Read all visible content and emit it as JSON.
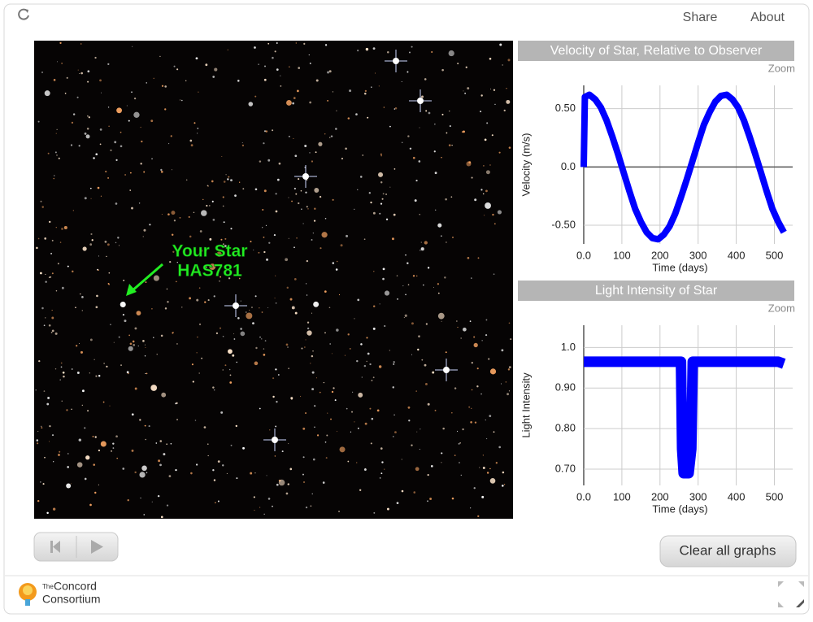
{
  "toolbar": {
    "share": "Share",
    "about": "About"
  },
  "star_label": {
    "line1": "Your Star",
    "line2": "HAS781"
  },
  "buttons": {
    "clear": "Clear all graphs"
  },
  "footer": {
    "logo_small": "The",
    "logo_name1": "Concord",
    "logo_name2": "Consortium"
  },
  "chart_data": [
    {
      "type": "line",
      "title": "Velocity of Star, Relative to Observer",
      "zoom": "Zoom",
      "x_label": "Time (days)",
      "y_label": "Velocity (m/s)",
      "color": "#0000ff",
      "x": [
        0,
        3,
        15,
        30,
        45,
        60,
        75,
        90,
        105,
        120,
        135,
        150,
        165,
        180,
        195,
        210,
        225,
        240,
        255,
        270,
        285,
        300,
        315,
        330,
        345,
        360,
        375,
        390,
        405,
        420,
        435,
        450,
        465,
        480,
        495,
        510,
        525
      ],
      "values": [
        0.0,
        0.6,
        0.62,
        0.58,
        0.51,
        0.4,
        0.26,
        0.11,
        -0.05,
        -0.21,
        -0.36,
        -0.47,
        -0.56,
        -0.61,
        -0.62,
        -0.58,
        -0.51,
        -0.4,
        -0.26,
        -0.11,
        0.05,
        0.21,
        0.36,
        0.47,
        0.56,
        0.61,
        0.62,
        0.58,
        0.51,
        0.4,
        0.26,
        0.11,
        -0.05,
        -0.21,
        -0.36,
        -0.47,
        -0.56
      ],
      "xlim": [
        0,
        548
      ],
      "xticks": [
        {
          "value": 0,
          "label": "0.0"
        },
        100,
        200,
        300,
        400,
        500
      ],
      "ylim": [
        -0.66,
        0.7
      ],
      "yticks": [
        {
          "value": 0.5,
          "label": "0.50"
        },
        {
          "value": 0,
          "label": "0.0"
        },
        {
          "value": -0.5,
          "label": "-0.50"
        }
      ],
      "grid": true
    },
    {
      "type": "line",
      "title": "Light Intensity of Star",
      "zoom": "Zoom",
      "x_label": "Time (days)",
      "y_label": "Light Intensity",
      "color": "#0000ff",
      "x": [
        0,
        30,
        60,
        90,
        120,
        150,
        180,
        210,
        240,
        255,
        258,
        262,
        275,
        282,
        286,
        300,
        330,
        360,
        390,
        420,
        450,
        480,
        510,
        525
      ],
      "values": [
        0.965,
        0.965,
        0.965,
        0.965,
        0.965,
        0.965,
        0.965,
        0.965,
        0.965,
        0.965,
        0.75,
        0.69,
        0.69,
        0.75,
        0.965,
        0.965,
        0.965,
        0.965,
        0.965,
        0.965,
        0.965,
        0.965,
        0.965,
        0.96
      ],
      "xlim": [
        0,
        548
      ],
      "xticks": [
        {
          "value": 0,
          "label": "0.0"
        },
        100,
        200,
        300,
        400,
        500
      ],
      "ylim": [
        0.66,
        1.055
      ],
      "yticks": [
        {
          "value": 1.0,
          "label": "1.0"
        },
        {
          "value": 0.9,
          "label": "0.90"
        },
        {
          "value": 0.8,
          "label": "0.80"
        },
        {
          "value": 0.7,
          "label": "0.70"
        }
      ],
      "grid": true
    }
  ]
}
